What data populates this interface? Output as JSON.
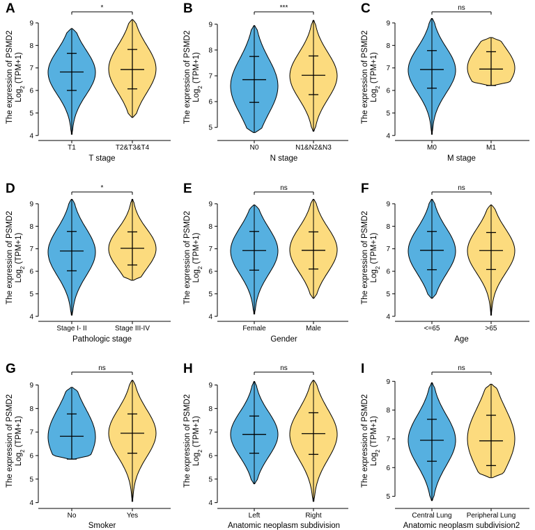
{
  "figure": {
    "ylabel_line1": "The expression of PSMD2",
    "ylabel_line2_prefix": "Log",
    "ylabel_line2_sub": "2",
    "ylabel_line2_suffix": " (TPM+1)",
    "colors": {
      "group1": "#56B0E0",
      "group2": "#FCDB7E",
      "outline": "#000000"
    }
  },
  "chart_data": [
    {
      "letter": "A",
      "type": "violin",
      "xlabel": "T stage",
      "categories": [
        "T1",
        "T2&T3&T4"
      ],
      "ylim": [
        3.9,
        9.4
      ],
      "yticks": [
        4,
        5,
        6,
        7,
        8,
        9
      ],
      "significance": "*",
      "groups": [
        {
          "median": 6.82,
          "q_low": 6.0,
          "q_high": 7.65,
          "min": 4.05,
          "max": 8.75,
          "mode": 6.8
        },
        {
          "median": 6.93,
          "q_low": 6.07,
          "q_high": 7.82,
          "min": 4.8,
          "max": 9.15,
          "mode": 6.95
        }
      ]
    },
    {
      "letter": "B",
      "type": "violin",
      "xlabel": "N stage",
      "categories": [
        "N0",
        "N1&N2&N3"
      ],
      "ylim": [
        4.6,
        9.4
      ],
      "yticks": [
        5,
        6,
        7,
        8,
        9
      ],
      "significance": "***",
      "groups": [
        {
          "median": 6.85,
          "q_low": 5.97,
          "q_high": 7.75,
          "min": 4.8,
          "max": 8.95,
          "mode": 6.6
        },
        {
          "median": 7.02,
          "q_low": 6.27,
          "q_high": 7.77,
          "min": 4.85,
          "max": 9.15,
          "mode": 7.0
        }
      ]
    },
    {
      "letter": "C",
      "type": "violin",
      "xlabel": "M stage",
      "categories": [
        "M0",
        "M1"
      ],
      "ylim": [
        3.9,
        9.4
      ],
      "yticks": [
        4,
        5,
        6,
        7,
        8,
        9
      ],
      "significance": "ns",
      "groups": [
        {
          "median": 6.93,
          "q_low": 6.1,
          "q_high": 7.77,
          "min": 4.05,
          "max": 9.2,
          "mode": 6.9
        },
        {
          "median": 6.95,
          "q_low": 6.22,
          "q_high": 7.72,
          "min": 6.22,
          "max": 8.35,
          "mode": 7.0
        }
      ]
    },
    {
      "letter": "D",
      "type": "violin",
      "xlabel": "Pathologic stage",
      "categories": [
        "Stage I- II",
        "Stage III-IV"
      ],
      "ylim": [
        3.9,
        9.4
      ],
      "yticks": [
        4,
        5,
        6,
        7,
        8,
        9
      ],
      "significance": "*",
      "groups": [
        {
          "median": 6.9,
          "q_low": 6.02,
          "q_high": 7.77,
          "min": 4.05,
          "max": 9.2,
          "mode": 6.85
        },
        {
          "median": 7.02,
          "q_low": 6.28,
          "q_high": 7.75,
          "min": 5.6,
          "max": 9.2,
          "mode": 7.0
        }
      ]
    },
    {
      "letter": "E",
      "type": "violin",
      "xlabel": "Gender",
      "categories": [
        "Female",
        "Male"
      ],
      "ylim": [
        3.9,
        9.4
      ],
      "yticks": [
        4,
        5,
        6,
        7,
        8,
        9
      ],
      "significance": "ns",
      "groups": [
        {
          "median": 6.92,
          "q_low": 6.05,
          "q_high": 7.77,
          "min": 4.1,
          "max": 8.95,
          "mode": 6.9
        },
        {
          "median": 6.93,
          "q_low": 6.1,
          "q_high": 7.75,
          "min": 4.8,
          "max": 9.2,
          "mode": 6.95
        }
      ]
    },
    {
      "letter": "F",
      "type": "violin",
      "xlabel": "Age",
      "categories": [
        "<=65",
        ">65"
      ],
      "ylim": [
        3.9,
        9.4
      ],
      "yticks": [
        4,
        5,
        6,
        7,
        8,
        9
      ],
      "significance": "ns",
      "groups": [
        {
          "median": 6.93,
          "q_low": 6.07,
          "q_high": 7.77,
          "min": 4.8,
          "max": 9.2,
          "mode": 6.9
        },
        {
          "median": 6.92,
          "q_low": 6.08,
          "q_high": 7.72,
          "min": 4.05,
          "max": 8.95,
          "mode": 6.9
        }
      ]
    },
    {
      "letter": "G",
      "type": "violin",
      "xlabel": "Smoker",
      "categories": [
        "No",
        "Yes"
      ],
      "ylim": [
        3.9,
        9.4
      ],
      "yticks": [
        4,
        5,
        6,
        7,
        8,
        9
      ],
      "significance": "ns",
      "groups": [
        {
          "median": 6.82,
          "q_low": 5.85,
          "q_high": 7.77,
          "min": 5.85,
          "max": 8.9,
          "mode": 6.8
        },
        {
          "median": 6.95,
          "q_low": 6.1,
          "q_high": 7.77,
          "min": 4.05,
          "max": 9.2,
          "mode": 6.95
        }
      ]
    },
    {
      "letter": "H",
      "type": "violin",
      "xlabel": "Anatomic neoplasm subdivision",
      "categories": [
        "Left",
        "Right"
      ],
      "ylim": [
        3.9,
        9.4
      ],
      "yticks": [
        4,
        5,
        6,
        7,
        8,
        9
      ],
      "significance": "ns",
      "groups": [
        {
          "median": 6.9,
          "q_low": 6.1,
          "q_high": 7.68,
          "min": 4.8,
          "max": 9.15,
          "mode": 6.9
        },
        {
          "median": 6.93,
          "q_low": 6.05,
          "q_high": 7.82,
          "min": 4.05,
          "max": 9.2,
          "mode": 6.9
        }
      ]
    },
    {
      "letter": "I",
      "type": "violin",
      "xlabel": "Anatomic neoplasm subdivision2",
      "categories": [
        "Central Lung",
        "Peripheral Lung"
      ],
      "ylim": [
        4.7,
        9.2
      ],
      "yticks": [
        5,
        6,
        7,
        8,
        9
      ],
      "significance": "ns",
      "groups": [
        {
          "median": 6.95,
          "q_low": 6.22,
          "q_high": 7.68,
          "min": 4.85,
          "max": 8.95,
          "mode": 6.95
        },
        {
          "median": 6.93,
          "q_low": 6.07,
          "q_high": 7.82,
          "min": 5.65,
          "max": 8.9,
          "mode": 7.0
        }
      ]
    }
  ]
}
